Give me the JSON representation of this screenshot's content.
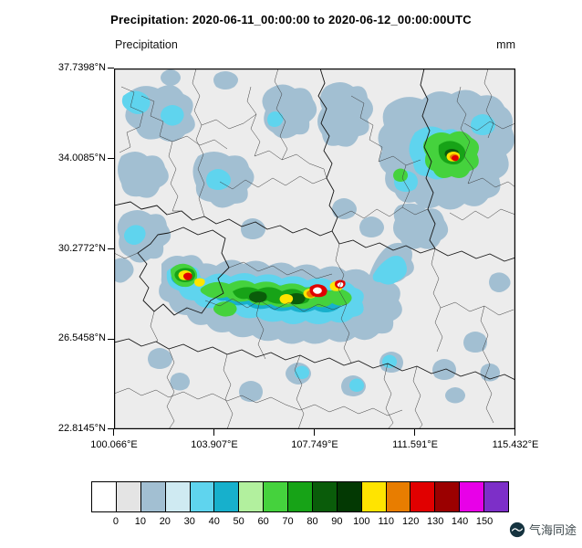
{
  "title": "Precipitation: 2020-06-11_00:00:00 to 2020-06-12_00:00:00UTC",
  "left_axis_title": "Precipitation",
  "units": "mm",
  "axes": {
    "lat_ticks": [
      "37.7398°N",
      "34.0085°N",
      "30.2772°N",
      "26.5458°N",
      "22.8145°N"
    ],
    "lon_ticks": [
      "100.066°E",
      "103.907°E",
      "107.749°E",
      "111.591°E",
      "115.432°E"
    ]
  },
  "colorbar": {
    "labels": [
      "0",
      "10",
      "20",
      "30",
      "40",
      "50",
      "60",
      "70",
      "80",
      "90",
      "100",
      "110",
      "120",
      "130",
      "140",
      "150"
    ],
    "colors": [
      "#ffffff",
      "#e4e4e4",
      "#a2bfd2",
      "#cfeaf2",
      "#5fd4ee",
      "#17b0cc",
      "#b2f09e",
      "#45d23d",
      "#17a317",
      "#0a5c0a",
      "#033903",
      "#ffe400",
      "#e87d00",
      "#e10000",
      "#9b0000",
      "#e800e8",
      "#7d2fc8"
    ]
  },
  "branding": "气海同途",
  "chart_data": {
    "type": "heatmap",
    "title": "Precipitation: 2020-06-11_00:00:00 to 2020-06-12_00:00:00UTC",
    "units": "mm",
    "levels": [
      0,
      10,
      20,
      30,
      40,
      50,
      60,
      70,
      80,
      90,
      100,
      110,
      120,
      130,
      140,
      150
    ],
    "lon_range": [
      100.066,
      115.432
    ],
    "lat_range": [
      22.8145,
      37.7398
    ],
    "legend_position": "bottom",
    "notes": "24h accumulated precipitation field over central/southern China; heavy rain band near 27-29N between 103E and 110E with embedded cores >100mm, secondary maximum near 33-34.5N, 112-114E"
  }
}
